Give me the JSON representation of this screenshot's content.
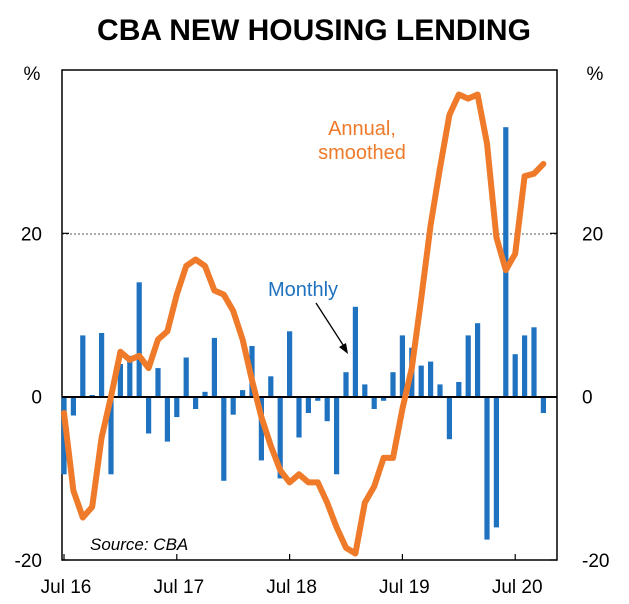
{
  "chart_data": {
    "type": "bar+line",
    "title": "CBA NEW HOUSING LENDING",
    "ylabel_left": "%",
    "ylabel_right": "%",
    "ylim": [
      -20,
      40
    ],
    "yticks": [
      -20,
      0,
      20
    ],
    "ytick_labels": [
      "-20",
      "0",
      "20"
    ],
    "xtick_labels": [
      "Jul 16",
      "Jul 17",
      "Jul 18",
      "Jul 19",
      "Jul 20"
    ],
    "xtick_index": [
      0,
      12,
      24,
      36,
      48
    ],
    "gridline": 20,
    "colors": {
      "bar": "#1f72c0",
      "line": "#ee7a2a",
      "text_blue": "#1f72c0",
      "text_orange": "#ee7a2a"
    },
    "series": [
      {
        "name": "Monthly",
        "kind": "bar",
        "values": [
          -9.5,
          -2.3,
          7.5,
          0.2,
          7.8,
          -9.5,
          4.0,
          5.0,
          14.0,
          -4.5,
          3.5,
          -5.5,
          -2.5,
          4.8,
          -1.5,
          0.6,
          7.2,
          -10.3,
          -2.2,
          0.8,
          6.2,
          -7.8,
          2.5,
          -10.0,
          8.0,
          -5.0,
          -2.0,
          -0.5,
          -3.0,
          -9.5,
          3.0,
          11.0,
          1.5,
          -1.5,
          -0.5,
          3.0,
          7.5,
          6.0,
          3.8,
          4.3,
          1.5,
          -5.2,
          1.8,
          7.5,
          9.0,
          -17.5,
          -16.0,
          33.0,
          5.2,
          7.5,
          8.5,
          -2.0
        ]
      },
      {
        "name": "Annual, smoothed",
        "kind": "line",
        "values": [
          -2,
          -11.5,
          -14.8,
          -13.5,
          -5.0,
          0.0,
          5.5,
          4.5,
          5.0,
          3.5,
          7.0,
          8.0,
          12.5,
          16.0,
          16.8,
          16.0,
          13.0,
          12.5,
          10.5,
          7.0,
          2.0,
          -2.5,
          -6.0,
          -9.0,
          -10.5,
          -9.5,
          -10.5,
          -10.5,
          -13.0,
          -16.0,
          -18.5,
          -19.2,
          -13.0,
          -11.0,
          -7.5,
          -7.5,
          -1.5,
          3.5,
          12.0,
          21.0,
          28.0,
          34.5,
          37.0,
          36.5,
          37.0,
          31.0,
          19.5,
          15.5,
          17.5,
          27.0,
          27.3,
          28.5
        ]
      }
    ],
    "annotations": {
      "monthly_label": "Monthly",
      "annual_label_line1": "Annual,",
      "annual_label_line2": "smoothed",
      "source": "Source: CBA"
    }
  }
}
